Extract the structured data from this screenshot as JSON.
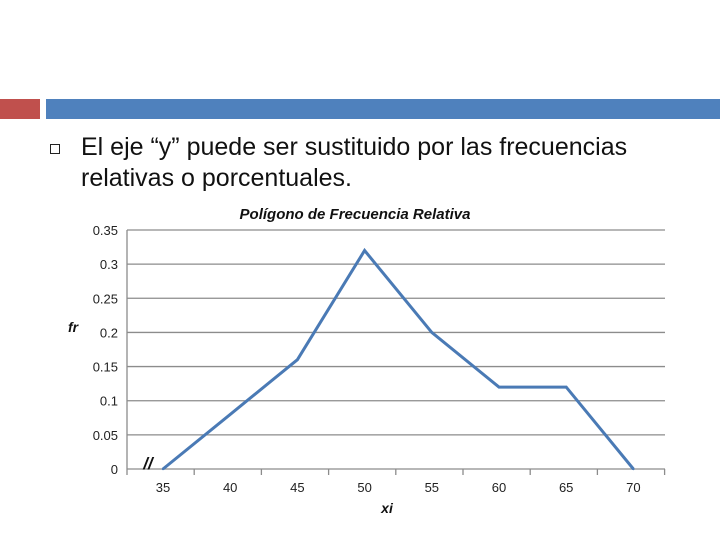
{
  "slide": {
    "bullet_text": "El eje “y” puede ser sustituido por las frecuencias relativas o porcentuales.",
    "accent_red": "#c0504d",
    "accent_blue": "#4f81bd"
  },
  "chart_data": {
    "type": "line",
    "title": "Polígono de Frecuencia Relativa",
    "xlabel": "xi",
    "ylabel": "fr",
    "categories": [
      "35",
      "40",
      "45",
      "50",
      "55",
      "60",
      "65",
      "70"
    ],
    "series": [
      {
        "values": [
          0,
          0.08,
          0.16,
          0.32,
          0.2,
          0.12,
          0.12,
          0
        ]
      }
    ],
    "yticks": [
      "0",
      "0.05",
      "0.1",
      "0.15",
      "0.2",
      "0.25",
      "0.3",
      "0.35"
    ],
    "ylim": [
      0,
      0.35
    ],
    "grid": true,
    "axis_break": "//",
    "line_color": "#4a7ab5",
    "grid_color": "#8c8c8c"
  }
}
